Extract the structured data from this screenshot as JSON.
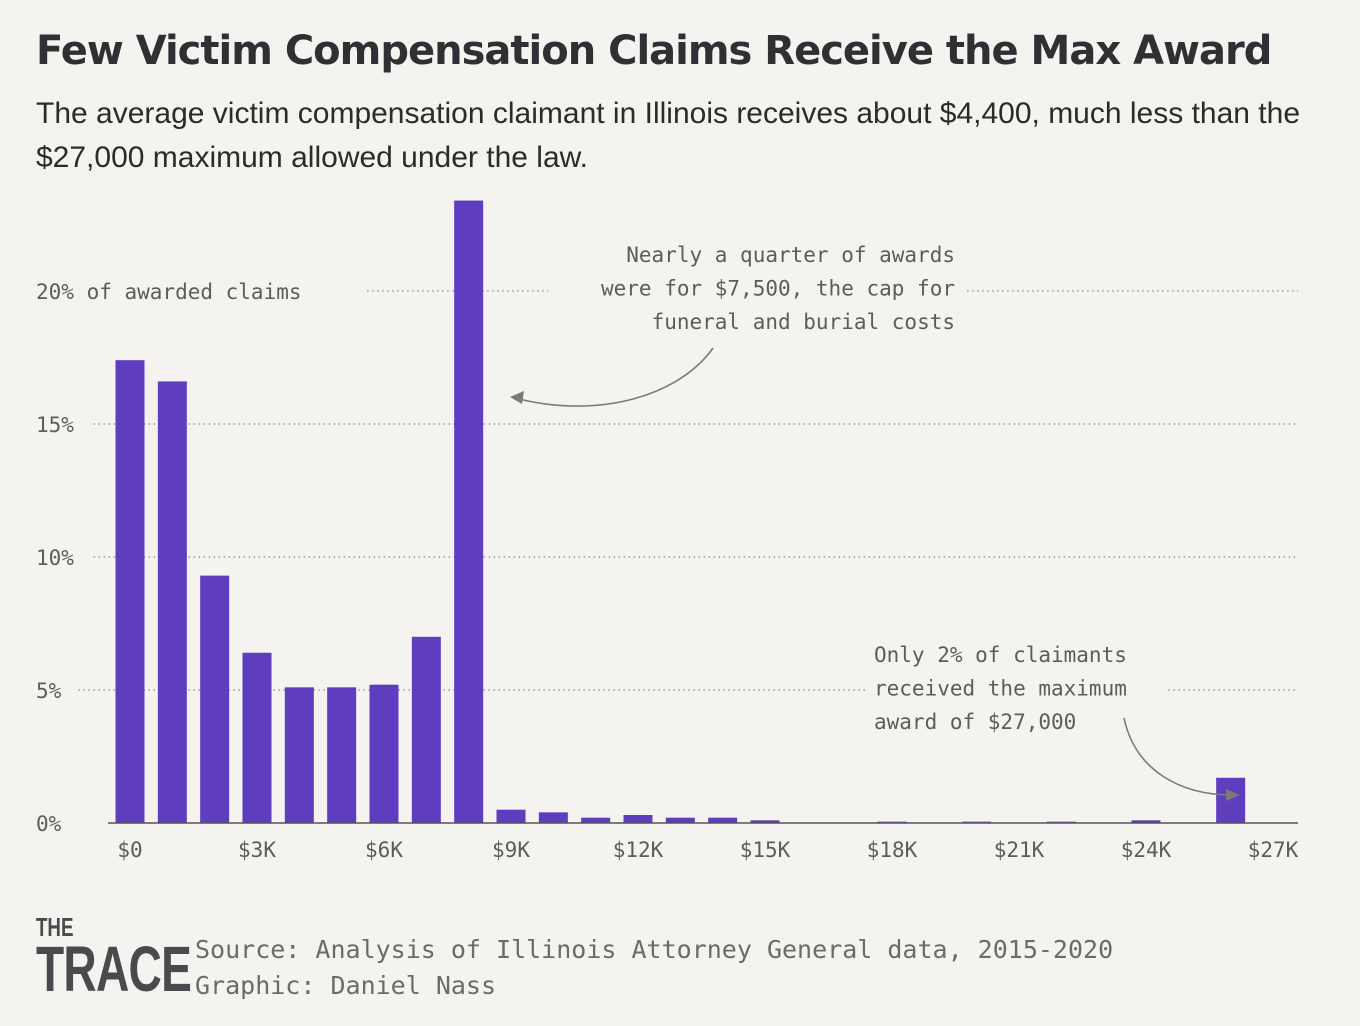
{
  "title": "Few Victim Compensation Claims Receive the Max Award",
  "subtitle": "The average victim compensation claimant in Illinois receives about $4,400, much less than the $27,000 maximum allowed under the law.",
  "chart_data": {
    "type": "bar",
    "bar_color": "#5e3dbf",
    "grid": "dotted horizontal",
    "ylim": [
      0,
      25
    ],
    "xlim": [
      0,
      27000
    ],
    "bin_width": 1000,
    "y_ticks": [
      {
        "value": 0,
        "label": "0%"
      },
      {
        "value": 5,
        "label": "5%"
      },
      {
        "value": 10,
        "label": "10%"
      },
      {
        "value": 15,
        "label": "15%"
      },
      {
        "value": 20,
        "label": "20% of awarded claims"
      }
    ],
    "x_ticks": [
      {
        "value": 0,
        "label": "$0"
      },
      {
        "value": 3000,
        "label": "$3K"
      },
      {
        "value": 6000,
        "label": "$6K"
      },
      {
        "value": 9000,
        "label": "$9K"
      },
      {
        "value": 12000,
        "label": "$12K"
      },
      {
        "value": 15000,
        "label": "$15K"
      },
      {
        "value": 18000,
        "label": "$18K"
      },
      {
        "value": 21000,
        "label": "$21K"
      },
      {
        "value": 24000,
        "label": "$24K"
      },
      {
        "value": 27000,
        "label": "$27K"
      }
    ],
    "bins": [
      0,
      1000,
      2000,
      3000,
      4000,
      5000,
      6000,
      7000,
      8000,
      9000,
      10000,
      11000,
      12000,
      13000,
      14000,
      15000,
      16000,
      17000,
      18000,
      19000,
      20000,
      21000,
      22000,
      23000,
      24000,
      25000,
      26000
    ],
    "values": [
      17.4,
      16.6,
      9.3,
      6.4,
      5.1,
      5.1,
      5.2,
      7.0,
      23.4,
      0.5,
      0.4,
      0.2,
      0.3,
      0.2,
      0.2,
      0.1,
      0.0,
      0.0,
      0.05,
      0.0,
      0.05,
      0.0,
      0.05,
      0.0,
      0.1,
      0.0,
      1.7
    ],
    "annotations": [
      {
        "lines": [
          "Nearly a quarter of awards",
          "were for $7,500, the cap for",
          "funeral and burial costs"
        ]
      },
      {
        "lines": [
          "Only 2% of claimants",
          "received the maximum",
          "award of $27,000"
        ]
      }
    ]
  },
  "footer": {
    "logo_top": "THE",
    "logo_bottom": "TRACE",
    "source": "Source: Analysis of Illinois Attorney General data, 2015-2020",
    "credit": "Graphic: Daniel Nass"
  }
}
